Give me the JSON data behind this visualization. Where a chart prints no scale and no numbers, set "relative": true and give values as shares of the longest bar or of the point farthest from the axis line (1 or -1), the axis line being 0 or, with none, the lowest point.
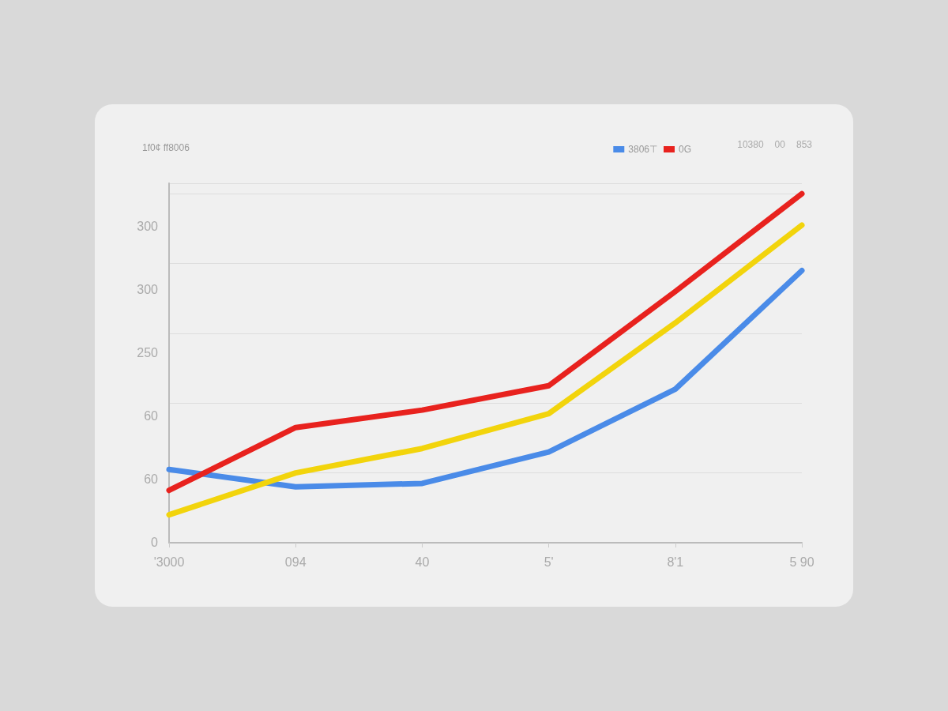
{
  "chart_data": {
    "type": "line",
    "title": "1f0¢ ff8006",
    "relative": true,
    "categories": [
      "'3000",
      "094",
      "40",
      "5'",
      "8'1",
      "5 90"
    ],
    "series": [
      {
        "name": "3806⊤",
        "color": "#4a8be8",
        "values": [
          0.21,
          0.16,
          0.17,
          0.26,
          0.44,
          0.78
        ]
      },
      {
        "name": "0G",
        "color": "#e8221e",
        "values": [
          0.15,
          0.33,
          0.38,
          0.45,
          0.72,
          1
        ]
      },
      {
        "color": "#f2d40c",
        "values": [
          0.08,
          0.2,
          0.27,
          0.37,
          0.63,
          0.91
        ]
      }
    ],
    "annotations": [
      "0",
      "60",
      "60",
      "250",
      "300",
      "300",
      "10380",
      "00",
      "853"
    ],
    "grid": "y",
    "legend": "top right",
    "marker": "none",
    "line_style": "solid"
  }
}
